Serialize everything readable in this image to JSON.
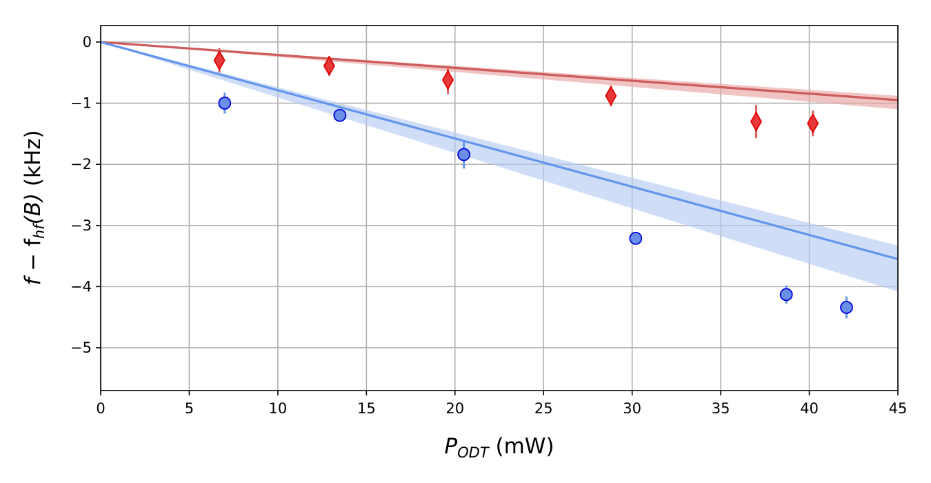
{
  "chart_data": {
    "type": "scatter",
    "title": "",
    "xlabel": "P_ODT (mW)",
    "xlabel_parts": {
      "main": "P",
      "sub": "ODT",
      "unit": " (mW)"
    },
    "ylabel": "f − f_hf(B) (kHz)",
    "ylabel_parts": {
      "f": "f",
      "minus": " − f",
      "sub": "hf",
      "arg": "(B)",
      "unit": " (kHz)"
    },
    "xlim": [
      0,
      45
    ],
    "ylim": [
      -5.7,
      0.27
    ],
    "xticks": [
      0,
      5,
      10,
      15,
      20,
      25,
      30,
      35,
      40,
      45
    ],
    "yticks": [
      0,
      -1,
      -2,
      -3,
      -4,
      -5
    ],
    "grid": true,
    "series": [
      {
        "marker": "diamond",
        "color": "#e8393a",
        "edge_color": "#e00000",
        "errorbar_color": "#e06060",
        "points": [
          {
            "x": 6.7,
            "y": -0.3,
            "err": 0.2
          },
          {
            "x": 12.9,
            "y": -0.39,
            "err": 0.16
          },
          {
            "x": 19.6,
            "y": -0.62,
            "err": 0.23
          },
          {
            "x": 28.8,
            "y": -0.88,
            "err": 0.17
          },
          {
            "x": 37.0,
            "y": -1.3,
            "err": 0.27
          },
          {
            "x": 40.2,
            "y": -1.33,
            "err": 0.21
          }
        ]
      },
      {
        "marker": "circle",
        "color": "#6a8fe8",
        "edge_color": "#0000dd",
        "errorbar_color": "#6495ed",
        "points": [
          {
            "x": 7.0,
            "y": -1.0,
            "err": 0.17
          },
          {
            "x": 13.5,
            "y": -1.2,
            "err": 0.08
          },
          {
            "x": 20.5,
            "y": -1.84,
            "err": 0.23
          },
          {
            "x": 30.2,
            "y": -3.21,
            "err": 0.05
          },
          {
            "x": 38.7,
            "y": -4.13,
            "err": 0.15
          },
          {
            "x": 42.1,
            "y": -4.34,
            "err": 0.18
          }
        ]
      }
    ],
    "fits": [
      {
        "color": "#cd5c5c",
        "band_color": "#e9a5a5",
        "x": [
          0,
          45
        ],
        "y": [
          0,
          -0.95
        ],
        "band_upper": [
          0,
          -0.88
        ],
        "band_lower": [
          0,
          -1.1
        ]
      },
      {
        "color": "#6495ed",
        "band_color": "#b6cbf3",
        "x": [
          0,
          45
        ],
        "y": [
          0,
          -3.55
        ],
        "band_upper": [
          0,
          -3.33
        ],
        "band_lower": [
          0,
          -4.08
        ]
      }
    ]
  }
}
